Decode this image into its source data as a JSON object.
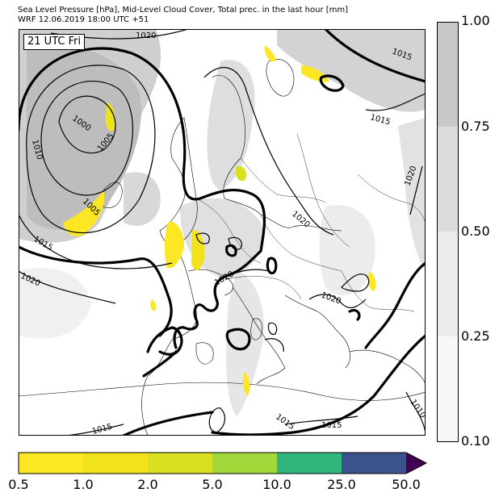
{
  "title_line1": "Sea Level Pressure [hPa], Mid-Level Cloud Cover, Total prec. in the last hour [mm]",
  "title_line2": "WRF 12.06.2019 18:00 UTC +51",
  "time_label": "21 UTC Fri",
  "isobar_labels": {
    "l1": "1020",
    "l2": "1015",
    "l3": "1015",
    "l4": "1000",
    "l5": "1005",
    "l6": "1010",
    "l7": "1005",
    "l8": "1015",
    "l9": "1020",
    "l10": "1020",
    "l11": "1020",
    "l12": "1020",
    "l13": "1020",
    "l14": "1015",
    "l15": "1015",
    "l16": "1015",
    "l17": "1010"
  },
  "cloud_cover_scale": {
    "ticks": [
      "1.00",
      "0.75",
      "0.50",
      "0.25",
      "0.10"
    ],
    "colors": [
      "#c8c8c8",
      "#dcdcdc",
      "#ebebeb",
      "#f7f7f7"
    ]
  },
  "precip_scale": {
    "ticks": [
      "0.5",
      "1.0",
      "2.0",
      "5.0",
      "10.0",
      "25.0",
      "50.0"
    ],
    "colors": [
      "#fde725",
      "#f0e21b",
      "#d9e022",
      "#a2d83a",
      "#2fb47c",
      "#3b528b",
      "#440154"
    ]
  }
}
